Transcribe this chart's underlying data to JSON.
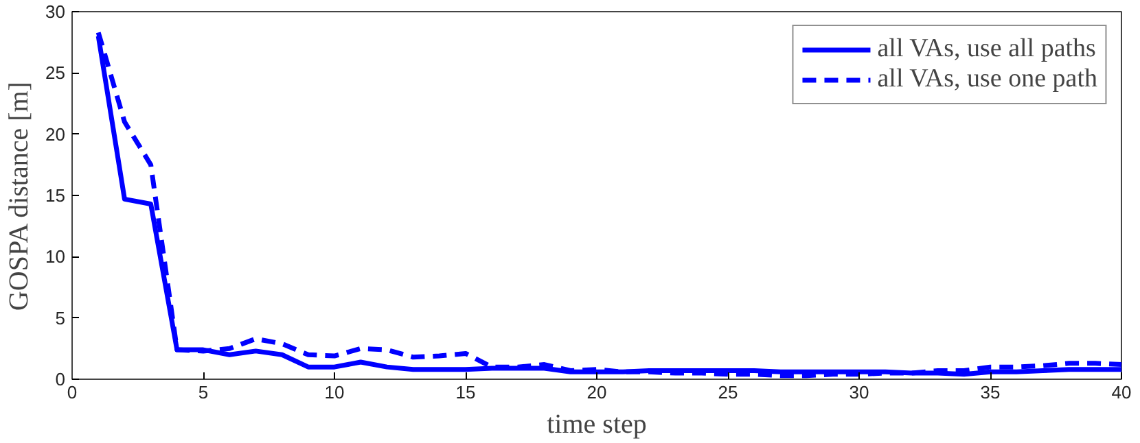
{
  "chart_data": {
    "type": "line",
    "xlabel": "time step",
    "ylabel": "GOSPA distance [m]",
    "x": [
      1,
      2,
      3,
      4,
      5,
      6,
      7,
      8,
      9,
      10,
      11,
      12,
      13,
      14,
      15,
      16,
      17,
      18,
      19,
      20,
      21,
      22,
      23,
      24,
      25,
      26,
      27,
      28,
      29,
      30,
      31,
      32,
      33,
      34,
      35,
      36,
      37,
      38,
      39,
      40
    ],
    "series": [
      {
        "name": "all VAs, use all paths",
        "color": "#0000ff",
        "line_style": "solid",
        "values": [
          28,
          14.7,
          14.3,
          2.4,
          2.4,
          2.0,
          2.3,
          2.0,
          1.0,
          1.0,
          1.4,
          1.0,
          0.8,
          0.8,
          0.8,
          0.9,
          0.9,
          0.9,
          0.6,
          0.6,
          0.6,
          0.7,
          0.7,
          0.7,
          0.7,
          0.7,
          0.6,
          0.6,
          0.6,
          0.6,
          0.6,
          0.5,
          0.5,
          0.4,
          0.6,
          0.6,
          0.7,
          0.8,
          0.8,
          0.8
        ]
      },
      {
        "name": "all VAs, use one path",
        "color": "#0000ff",
        "line_style": "dashed",
        "values": [
          28.3,
          21,
          17.5,
          2.4,
          2.3,
          2.5,
          3.3,
          2.9,
          2.0,
          1.9,
          2.5,
          2.4,
          1.8,
          1.9,
          2.1,
          1.0,
          1.0,
          1.2,
          0.7,
          0.8,
          0.6,
          0.6,
          0.5,
          0.5,
          0.4,
          0.4,
          0.3,
          0.3,
          0.4,
          0.4,
          0.5,
          0.5,
          0.7,
          0.7,
          1.0,
          1.0,
          1.1,
          1.3,
          1.3,
          1.2
        ]
      }
    ],
    "xlim": [
      0,
      40
    ],
    "ylim": [
      0,
      30
    ],
    "xticks": [
      0,
      5,
      10,
      15,
      20,
      25,
      30,
      35,
      40
    ],
    "yticks": [
      0,
      5,
      10,
      15,
      20,
      25,
      30
    ],
    "grid": false,
    "legend": "top right",
    "marker": "none"
  }
}
